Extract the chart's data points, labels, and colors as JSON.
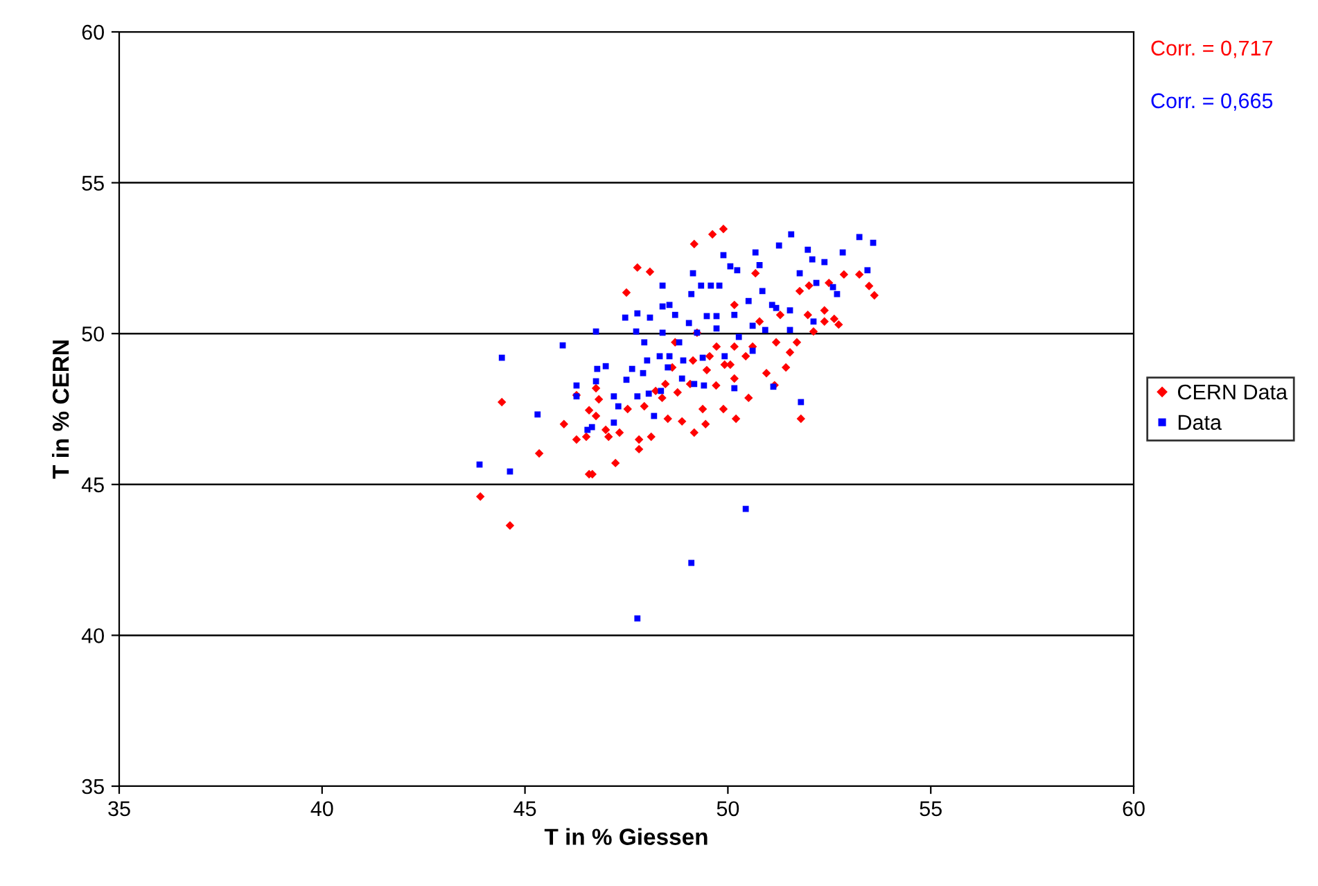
{
  "chart_data": {
    "type": "scatter",
    "xlabel": "T in % Giessen",
    "ylabel": "T in % CERN",
    "xlim": [
      35,
      60
    ],
    "xticks": [
      35,
      40,
      45,
      50,
      55,
      60
    ],
    "ylim": [
      35,
      60
    ],
    "yticks": [
      35,
      40,
      45,
      50,
      55,
      60
    ],
    "grid": "y",
    "legend": "right",
    "annotations": [
      "Corr. = 0,717",
      "Corr. = 0,665"
    ],
    "series": [
      {
        "name": "CERN Data",
        "color": "#ff0000",
        "marker": "diamond",
        "x": [
          43.9,
          44.63,
          44.43,
          45.35,
          45.96,
          46.27,
          46.58,
          46.66,
          47.23,
          47.5,
          47.77,
          48.08,
          49.17,
          49.62,
          49.89,
          51.8,
          51.15,
          53.61,
          53.48,
          53.24,
          52.86,
          52.49,
          52.73,
          52.62,
          52.38,
          52.11,
          52.38,
          52.0,
          51.7,
          51.53,
          51.43,
          50.95,
          50.51,
          50.2,
          49.89,
          49.45,
          49.17,
          49.38,
          48.87,
          48.52,
          48.11,
          47.81,
          47.81,
          47.33,
          46.99,
          47.06,
          46.51,
          46.75,
          46.58,
          46.82,
          46.75,
          46.27,
          47.53,
          47.94,
          48.38,
          48.76,
          49.07,
          49.48,
          49.71,
          50.06,
          50.16,
          50.44,
          50.61,
          50.78,
          51.29,
          51.19,
          50.16,
          49.92,
          49.55,
          49.14,
          48.7,
          48.63,
          48.46,
          48.22,
          49.24,
          49.72,
          50.16,
          50.68,
          51.97,
          51.77
        ],
        "values": [
          44.6,
          43.64,
          47.73,
          46.03,
          47.0,
          46.49,
          45.34,
          45.34,
          45.71,
          51.36,
          52.19,
          52.05,
          52.97,
          53.29,
          53.47,
          47.18,
          48.29,
          51.27,
          51.58,
          51.96,
          51.96,
          51.68,
          50.3,
          50.49,
          50.4,
          50.07,
          50.77,
          51.59,
          49.71,
          49.38,
          48.88,
          48.69,
          47.87,
          47.18,
          47.5,
          47.0,
          46.72,
          47.5,
          47.09,
          47.18,
          46.58,
          46.17,
          46.49,
          46.72,
          46.81,
          46.58,
          46.58,
          47.27,
          47.46,
          47.82,
          48.19,
          47.96,
          47.5,
          47.59,
          47.87,
          48.05,
          48.33,
          48.79,
          48.28,
          48.97,
          48.51,
          49.25,
          49.57,
          50.4,
          50.62,
          49.71,
          49.57,
          48.97,
          49.25,
          49.11,
          49.71,
          48.88,
          48.33,
          48.1,
          50.03,
          49.57,
          50.95,
          52.0,
          50.62,
          51.41
        ]
      },
      {
        "name": "Data",
        "color": "#0000ff",
        "marker": "square",
        "x": [
          43.88,
          44.63,
          44.43,
          45.31,
          45.93,
          50.44,
          49.1,
          47.77,
          51.8,
          51.12,
          46.27,
          46.27,
          46.54,
          46.65,
          46.75,
          47.19,
          47.19,
          47.3,
          47.5,
          47.64,
          46.78,
          46.99,
          47.47,
          46.75,
          47.74,
          47.77,
          48.08,
          47.94,
          48.01,
          47.91,
          47.77,
          48.05,
          48.18,
          48.35,
          48.39,
          48.39,
          48.56,
          48.7,
          48.39,
          48.32,
          48.56,
          48.52,
          48.8,
          48.9,
          48.87,
          49.04,
          49.14,
          49.1,
          49.34,
          49.58,
          49.79,
          49.89,
          50.06,
          50.23,
          50.68,
          50.78,
          51.26,
          51.56,
          51.97,
          52.08,
          52.83,
          53.24,
          53.58,
          53.44,
          52.69,
          52.59,
          52.38,
          52.18,
          51.77,
          51.53,
          51.19,
          50.85,
          50.51,
          50.16,
          49.72,
          49.48,
          49.24,
          49.72,
          50.27,
          50.61,
          50.92,
          51.53,
          52.11,
          49.92,
          49.38,
          50.16,
          49.41,
          49.17,
          50.61,
          51.09
        ],
        "values": [
          45.66,
          45.43,
          49.2,
          47.32,
          49.61,
          44.19,
          42.4,
          40.56,
          47.73,
          48.24,
          48.28,
          47.92,
          46.81,
          46.9,
          48.42,
          47.92,
          47.05,
          47.59,
          48.47,
          48.83,
          48.83,
          48.92,
          50.53,
          50.07,
          50.07,
          50.67,
          50.53,
          49.71,
          49.11,
          48.69,
          47.92,
          48.01,
          47.27,
          48.1,
          51.59,
          50.9,
          50.95,
          50.62,
          50.03,
          49.25,
          49.25,
          48.88,
          49.71,
          49.11,
          48.51,
          50.35,
          52.0,
          51.31,
          51.59,
          51.59,
          51.59,
          52.6,
          52.23,
          52.1,
          52.69,
          52.27,
          52.92,
          53.29,
          52.78,
          52.46,
          52.69,
          53.2,
          53.01,
          52.1,
          51.31,
          51.54,
          52.37,
          51.68,
          52.0,
          50.77,
          50.85,
          51.41,
          51.08,
          50.62,
          50.58,
          50.58,
          50.03,
          50.17,
          49.89,
          50.26,
          50.12,
          50.12,
          50.4,
          49.25,
          49.2,
          48.19,
          48.28,
          48.33,
          49.43,
          50.95
        ]
      }
    ]
  }
}
